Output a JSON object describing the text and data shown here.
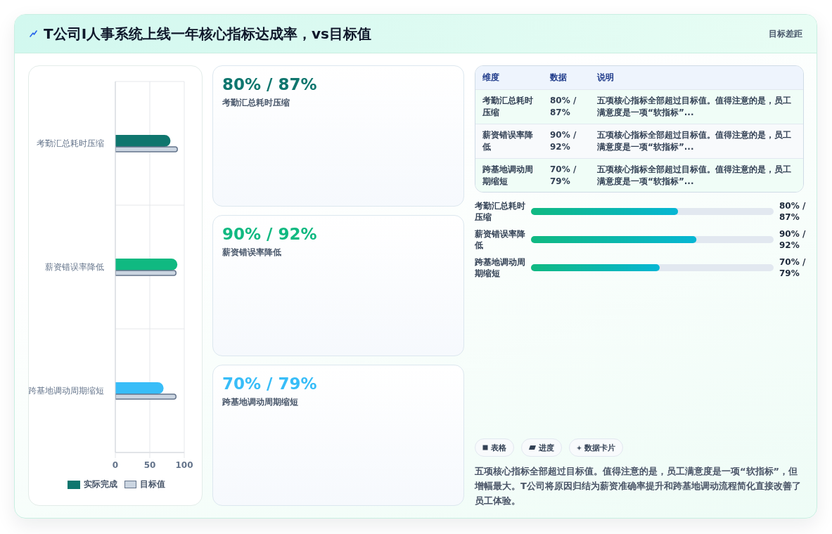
{
  "chart_data": [
    {
      "type": "other",
      "title": "T公司I人事系统上线一年核心指标达成率，vs目标值",
      "annotations": [
        "目标差距"
      ]
    },
    {
      "type": "bar",
      "orientation": "horizontal",
      "categories": [
        "考勤汇总耗时压缩",
        "薪资错误率降低",
        "跨基地调动周期缩短"
      ],
      "series": [
        {
          "name": "实际完成",
          "color": "#0f766e",
          "colors": [
            "#0f766e",
            "#10b981",
            "#38bdf8"
          ],
          "values": [
            80,
            90,
            70
          ]
        },
        {
          "name": "目标值",
          "color": "#cbd5e1",
          "values": [
            90,
            88,
            88
          ]
        }
      ],
      "xlim": [
        0,
        100
      ],
      "xticks": [
        0,
        50,
        100
      ],
      "grid": true,
      "legend": "bottom"
    },
    {
      "type": "other",
      "annotations": [
        "80% / 87%",
        "考勤汇总耗时压缩",
        "90% / 92%",
        "薪资错误率降低",
        "70% / 79%",
        "跨基地调动周期缩短"
      ],
      "colors": [
        "#0f766e",
        "#10b981",
        "#38bdf8"
      ]
    },
    {
      "type": "other",
      "annotations": [
        "维度",
        "数据",
        "说明",
        "考勤汇总耗时压缩",
        "80% / 87%",
        "五项核心指标全部超过目标值。值得注意的是，员工满意度是一项“软指标”...",
        "薪资错误率降低",
        "90% / 92%",
        "五项核心指标全部超过目标值。值得注意的是，员工满意度是一项“软指标”...",
        "跨基地调动周期缩短",
        "70% / 79%",
        "五项核心指标全部超过目标值。值得注意的是，员工满意度是一项“软指标”..."
      ]
    },
    {
      "type": "bar",
      "orientation": "horizontal",
      "categories": [
        "考勤汇总耗时压缩",
        "薪资错误率降低",
        "跨基地调动周期缩短"
      ],
      "values": [
        80,
        90,
        70
      ],
      "color": "#10b981",
      "value_labels": [
        "80% / 87%",
        "90% / 92%",
        "70% / 79%"
      ],
      "xlim": [
        0,
        132
      ],
      "tick_labels": "y"
    },
    {
      "type": "other",
      "annotations": [
        "表格",
        "进度",
        "数据卡片",
        "五项核心指标全部超过目标值。值得注意的是，员工满意度是一项“软指标”，但增幅最大。T公司将原因归结为薪资准确率提升和跨基地调动流程简化直接改善了员工体验。"
      ]
    }
  ]
}
